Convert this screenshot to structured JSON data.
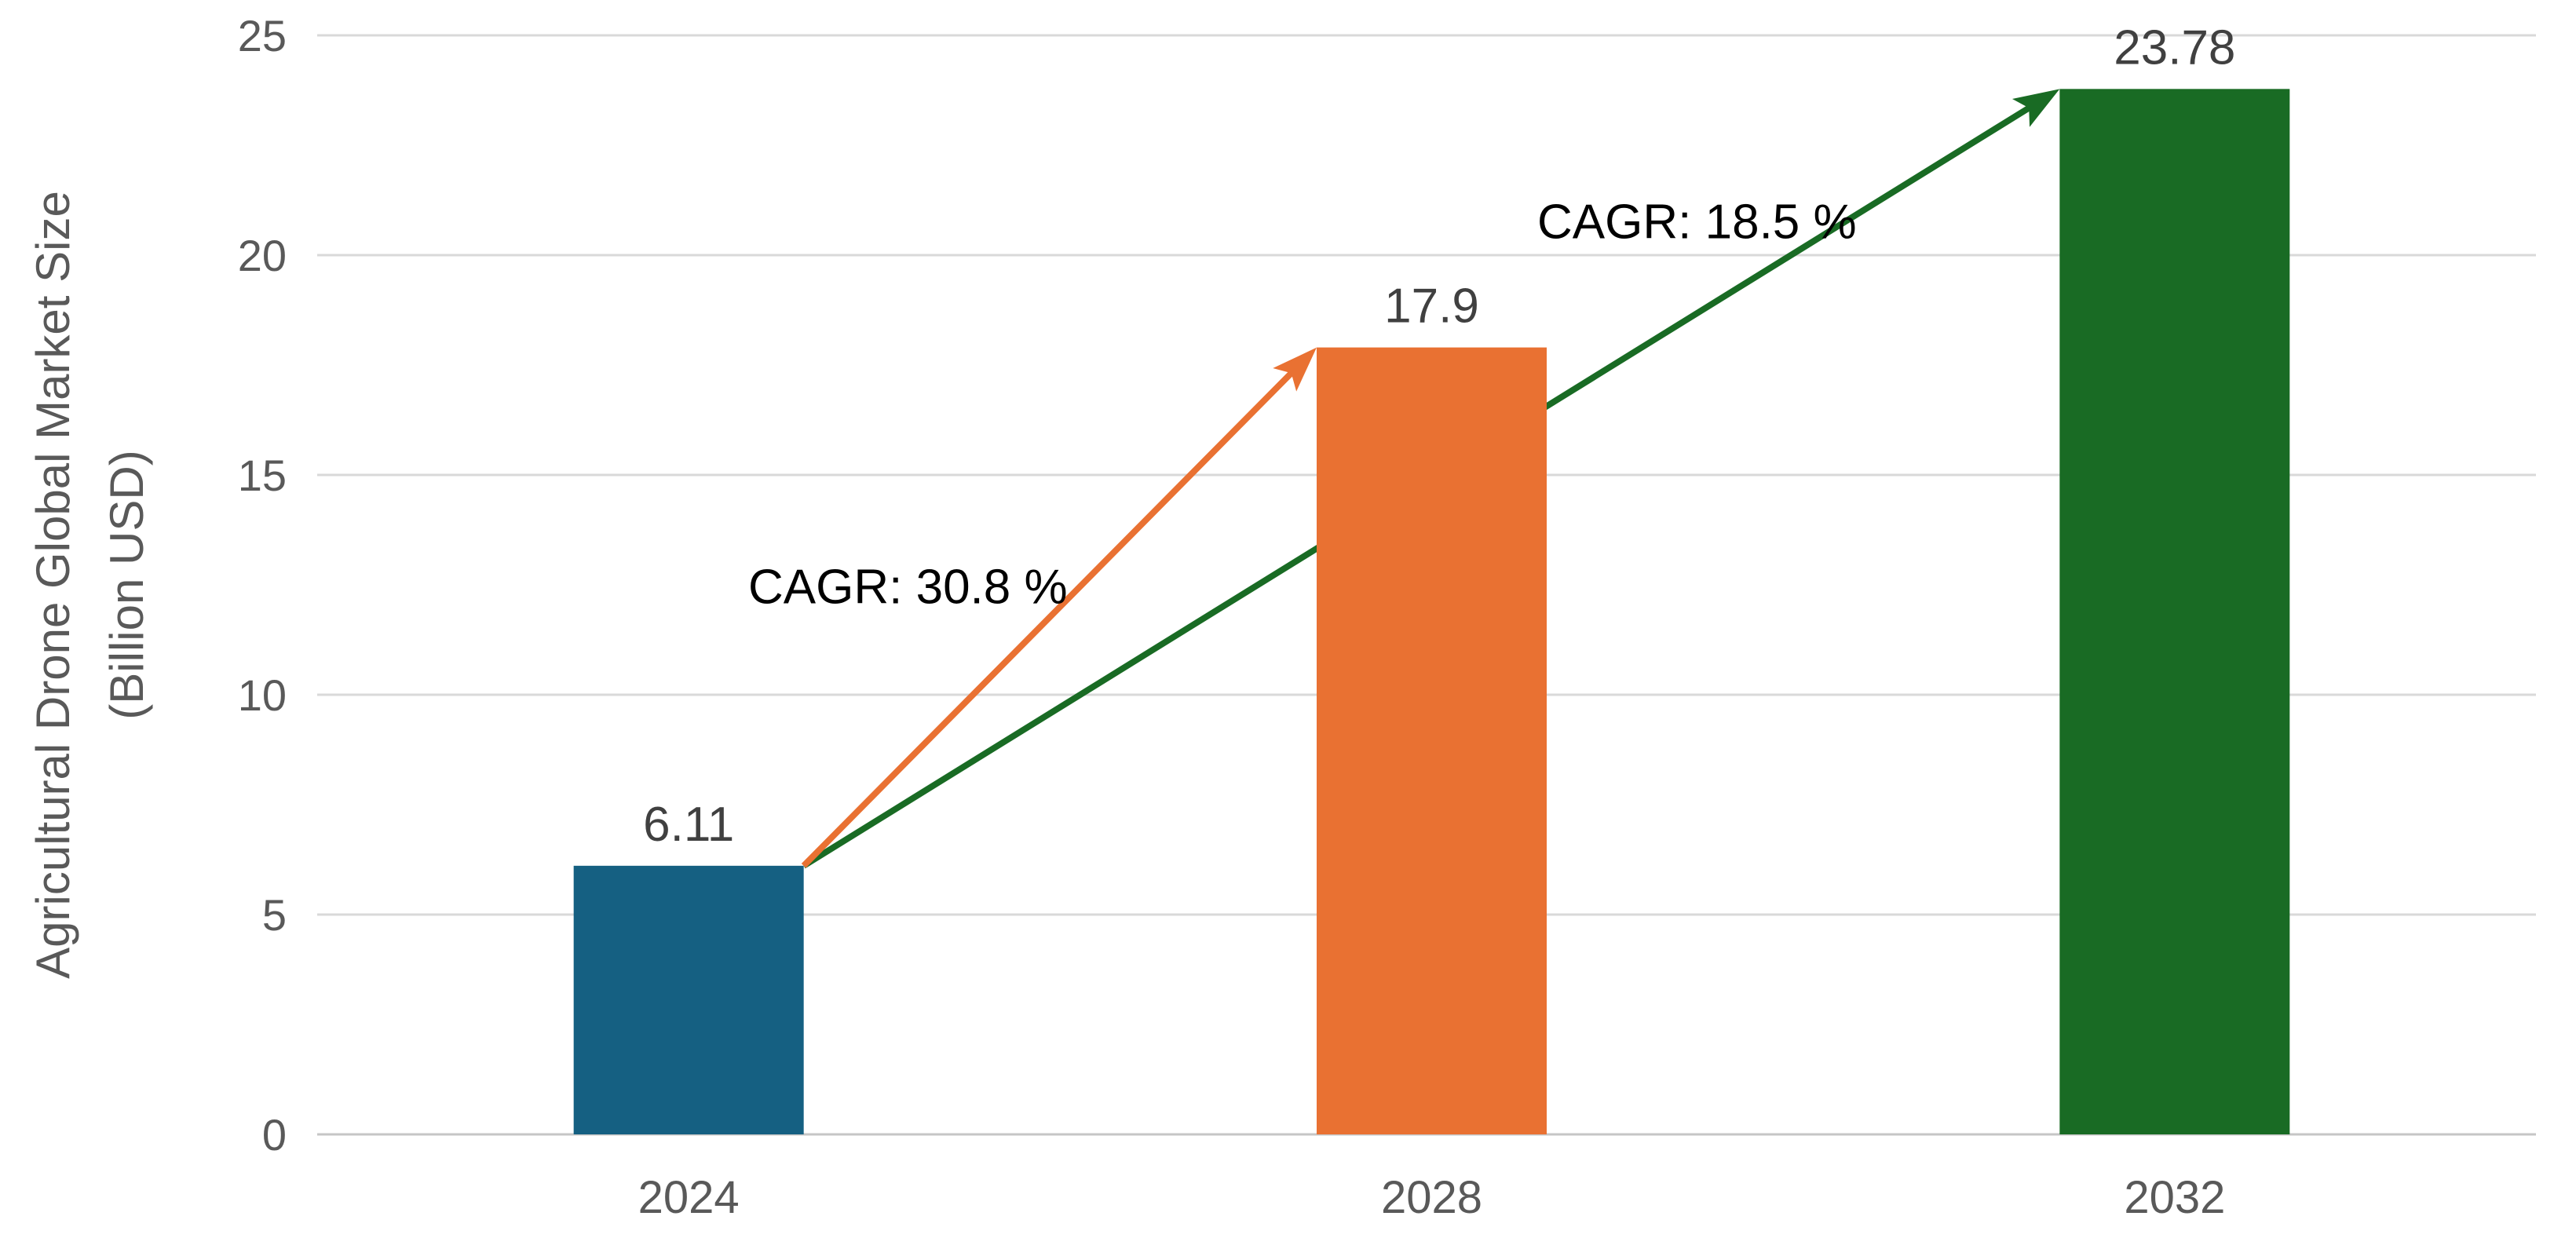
{
  "figure": {
    "background": "#FFFFFF"
  },
  "chart_data": {
    "type": "bar",
    "title": "",
    "xlabel": "",
    "ylabel": "Agricultural Drone Global Market Size (Billion USD)",
    "ylabel_lines": [
      "Agricultural Drone Global Market Size",
      "(Billion USD)"
    ],
    "categories": [
      "2024",
      "2028",
      "2032"
    ],
    "values": [
      6.11,
      17.9,
      23.78
    ],
    "value_labels": [
      "6.11",
      "17.9",
      "23.78"
    ],
    "bar_colors": [
      "#156082",
      "#E97132",
      "#196B24"
    ],
    "ylim": [
      0,
      25
    ],
    "yticks": [
      0,
      5,
      10,
      15,
      20,
      25
    ],
    "grid": true,
    "legend": "none",
    "colors": {
      "gridline": "#D9D9D9",
      "axis_line": "#C6C6C6",
      "tick_label": "#595959",
      "year_label": "#595959",
      "value_label": "#404040",
      "annotation_text": "#000000",
      "blue_bar": "#156082",
      "orange_bar": "#E97132",
      "green_bar": "#196B24"
    },
    "annotations": [
      {
        "text": "CAGR: 30.8 %",
        "from_index": 0,
        "to_index": 1,
        "arrow_color": "#E97132",
        "under_bars": false,
        "label_pos": {
          "x_frac": 0.265,
          "y_frac": 0.501
        }
      },
      {
        "text": "CAGR: 18.5 %",
        "from_index": 0,
        "to_index": 2,
        "arrow_color": "#196B24",
        "under_bars": true,
        "label_pos": {
          "x_frac": 0.619,
          "y_frac": 0.169
        }
      }
    ]
  }
}
